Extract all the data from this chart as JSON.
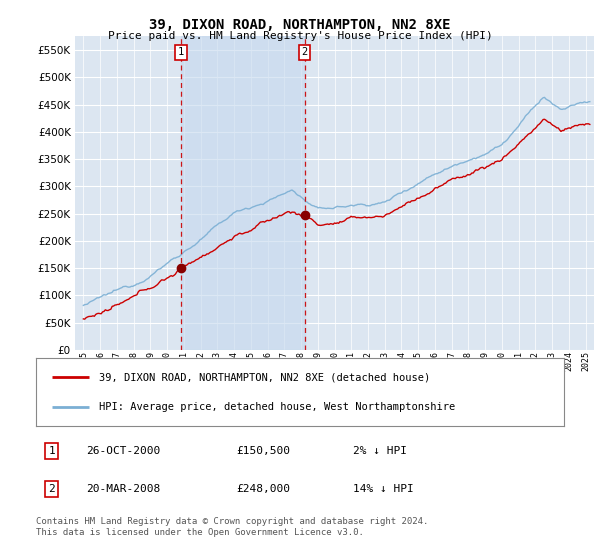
{
  "title": "39, DIXON ROAD, NORTHAMPTON, NN2 8XE",
  "subtitle": "Price paid vs. HM Land Registry's House Price Index (HPI)",
  "legend_line1": "39, DIXON ROAD, NORTHAMPTON, NN2 8XE (detached house)",
  "legend_line2": "HPI: Average price, detached house, West Northamptonshire",
  "table_rows": [
    {
      "num": "1",
      "date": "26-OCT-2000",
      "price": "£150,500",
      "hpi": "2% ↓ HPI"
    },
    {
      "num": "2",
      "date": "20-MAR-2008",
      "price": "£248,000",
      "hpi": "14% ↓ HPI"
    }
  ],
  "footnote": "Contains HM Land Registry data © Crown copyright and database right 2024.\nThis data is licensed under the Open Government Licence v3.0.",
  "price_line_color": "#cc0000",
  "hpi_line_color": "#7bafd4",
  "dashed_line_color": "#cc0000",
  "marker_color": "#880000",
  "plot_bg_color": "#dce6f1",
  "shade_color": "#c5d8ee",
  "grid_color": "#ffffff",
  "ylim": [
    0,
    575000
  ],
  "yticks": [
    0,
    50000,
    100000,
    150000,
    200000,
    250000,
    300000,
    350000,
    400000,
    450000,
    500000,
    550000
  ],
  "sale_year1": 2000.82,
  "sale_year2": 2008.22,
  "sale_price1": 150500,
  "sale_price2": 248000,
  "sale_numbers": [
    "1",
    "2"
  ],
  "xmin": 1994.5,
  "xmax": 2025.5
}
